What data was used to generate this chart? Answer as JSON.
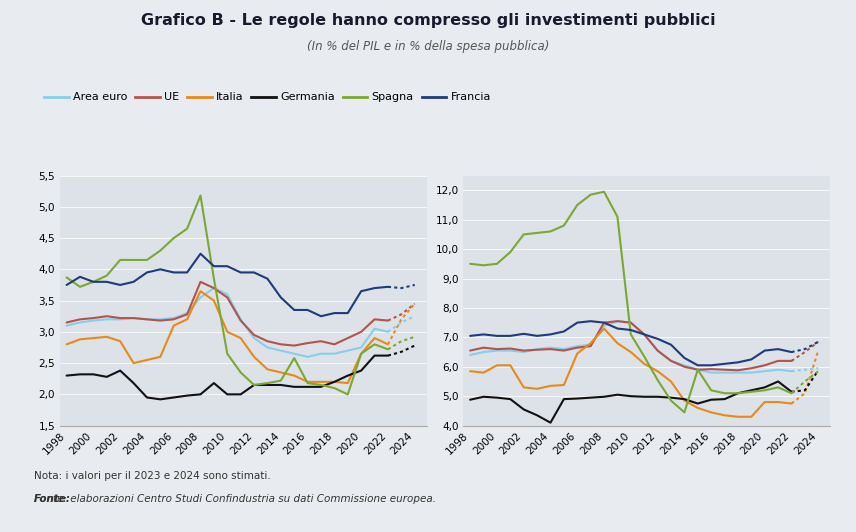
{
  "title": "Grafico B - Le regole hanno compresso gli investimenti pubblici",
  "subtitle": "(In % del PIL e in % della spesa pubblica)",
  "note": "Nota: i valori per il 2023 e 2024 sono stimati.",
  "fonte": "Fonte: elaborazioni Centro Studi Confindustria su dati Commissione europea.",
  "years": [
    1998,
    1999,
    2000,
    2001,
    2002,
    2003,
    2004,
    2005,
    2006,
    2007,
    2008,
    2009,
    2010,
    2011,
    2012,
    2013,
    2014,
    2015,
    2016,
    2017,
    2018,
    2019,
    2020,
    2021,
    2022
  ],
  "years_est": [
    2022,
    2023,
    2024
  ],
  "colors": {
    "area_euro": "#87CEEB",
    "ue": "#B5534A",
    "italia": "#E8891A",
    "germania": "#111111",
    "spagna": "#7BA832",
    "francia": "#1F3A7D"
  },
  "left_ylim": [
    1.5,
    5.5
  ],
  "left_yticks": [
    1.5,
    2.0,
    2.5,
    3.0,
    3.5,
    4.0,
    4.5,
    5.0,
    5.5
  ],
  "right_ylim": [
    4.0,
    12.5
  ],
  "right_yticks": [
    4.0,
    5.0,
    6.0,
    7.0,
    8.0,
    9.0,
    10.0,
    11.0,
    12.0
  ],
  "left": {
    "area_euro": [
      3.1,
      3.15,
      3.18,
      3.2,
      3.2,
      3.22,
      3.2,
      3.2,
      3.22,
      3.3,
      3.55,
      3.7,
      3.6,
      3.2,
      2.9,
      2.75,
      2.7,
      2.65,
      2.6,
      2.65,
      2.65,
      2.7,
      2.75,
      3.05,
      3.0
    ],
    "area_euro_est": [
      3.0,
      3.15,
      3.25
    ],
    "ue": [
      3.15,
      3.2,
      3.22,
      3.25,
      3.22,
      3.22,
      3.2,
      3.18,
      3.2,
      3.28,
      3.8,
      3.7,
      3.55,
      3.18,
      2.95,
      2.85,
      2.8,
      2.78,
      2.82,
      2.85,
      2.8,
      2.9,
      3.0,
      3.2,
      3.18
    ],
    "ue_est": [
      3.18,
      3.28,
      3.45
    ],
    "italia": [
      2.8,
      2.88,
      2.9,
      2.92,
      2.85,
      2.5,
      2.55,
      2.6,
      3.1,
      3.2,
      3.65,
      3.5,
      3.0,
      2.9,
      2.6,
      2.4,
      2.35,
      2.3,
      2.2,
      2.2,
      2.2,
      2.18,
      2.65,
      2.9,
      2.8
    ],
    "italia_est": [
      2.8,
      3.2,
      3.45
    ],
    "germania": [
      2.3,
      2.32,
      2.32,
      2.28,
      2.38,
      2.18,
      1.95,
      1.92,
      1.95,
      1.98,
      2.0,
      2.18,
      2.0,
      2.0,
      2.15,
      2.15,
      2.15,
      2.12,
      2.12,
      2.12,
      2.2,
      2.3,
      2.38,
      2.62,
      2.62
    ],
    "germania_est": [
      2.62,
      2.68,
      2.78
    ],
    "spagna": [
      3.87,
      3.72,
      3.8,
      3.9,
      4.15,
      4.15,
      4.15,
      4.3,
      4.5,
      4.65,
      5.18,
      3.85,
      2.65,
      2.35,
      2.15,
      2.18,
      2.22,
      2.58,
      2.18,
      2.15,
      2.1,
      2.0,
      2.65,
      2.8,
      2.72
    ],
    "spagna_est": [
      2.72,
      2.85,
      2.92
    ],
    "francia": [
      3.75,
      3.88,
      3.8,
      3.8,
      3.75,
      3.8,
      3.95,
      4.0,
      3.95,
      3.95,
      4.25,
      4.05,
      4.05,
      3.95,
      3.95,
      3.85,
      3.55,
      3.35,
      3.35,
      3.25,
      3.3,
      3.3,
      3.65,
      3.7,
      3.72
    ],
    "francia_est": [
      3.72,
      3.7,
      3.75
    ]
  },
  "right": {
    "area_euro": [
      6.4,
      6.5,
      6.55,
      6.55,
      6.5,
      6.6,
      6.65,
      6.6,
      6.7,
      6.75,
      7.4,
      7.55,
      7.5,
      7.1,
      6.55,
      6.2,
      6.05,
      5.9,
      5.8,
      5.8,
      5.8,
      5.8,
      5.85,
      5.9,
      5.85
    ],
    "area_euro_est": [
      5.85,
      5.9,
      5.95
    ],
    "ue": [
      6.55,
      6.65,
      6.6,
      6.62,
      6.55,
      6.58,
      6.6,
      6.55,
      6.65,
      6.7,
      7.5,
      7.55,
      7.5,
      7.1,
      6.55,
      6.2,
      6.0,
      5.9,
      5.92,
      5.9,
      5.88,
      5.95,
      6.05,
      6.2,
      6.2
    ],
    "ue_est": [
      6.2,
      6.5,
      6.85
    ],
    "italia": [
      5.85,
      5.8,
      6.05,
      6.05,
      5.3,
      5.25,
      5.35,
      5.38,
      6.45,
      6.8,
      7.3,
      6.8,
      6.5,
      6.1,
      5.85,
      5.5,
      4.85,
      4.6,
      4.45,
      4.35,
      4.3,
      4.3,
      4.8,
      4.8,
      4.75
    ],
    "italia_est": [
      4.75,
      5.1,
      6.55
    ],
    "germania": [
      4.88,
      4.98,
      4.95,
      4.9,
      4.55,
      4.35,
      4.1,
      4.9,
      4.92,
      4.95,
      4.98,
      5.05,
      5.0,
      4.98,
      4.98,
      4.95,
      4.9,
      4.75,
      4.88,
      4.9,
      5.1,
      5.2,
      5.3,
      5.5,
      5.15
    ],
    "germania_est": [
      5.15,
      5.2,
      5.88
    ],
    "spagna": [
      9.5,
      9.45,
      9.5,
      9.9,
      10.5,
      10.55,
      10.6,
      10.8,
      11.5,
      11.85,
      11.95,
      11.1,
      7.1,
      6.35,
      5.55,
      4.85,
      4.45,
      5.9,
      5.2,
      5.1,
      5.1,
      5.15,
      5.2,
      5.3,
      5.1
    ],
    "spagna_est": [
      5.1,
      5.5,
      5.85
    ],
    "francia": [
      7.05,
      7.1,
      7.05,
      7.05,
      7.12,
      7.05,
      7.1,
      7.2,
      7.5,
      7.55,
      7.5,
      7.3,
      7.25,
      7.1,
      6.95,
      6.75,
      6.3,
      6.05,
      6.05,
      6.1,
      6.15,
      6.25,
      6.55,
      6.6,
      6.5
    ],
    "francia_est": [
      6.5,
      6.6,
      6.85
    ]
  },
  "bg_color": "#e8ecf0",
  "plot_bg": "#dce2e8"
}
